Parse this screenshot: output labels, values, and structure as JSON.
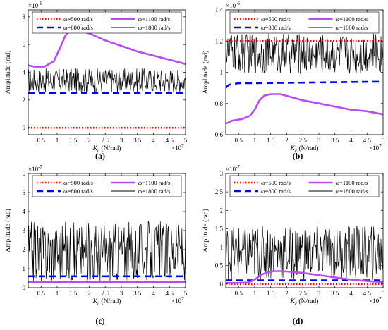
{
  "chart_data": [
    {
      "type": "line",
      "panel_label": "(a)",
      "ylabel": "Amplitude (rad)",
      "xlabel_main": "K",
      "xlabel_sub": "c",
      "xlabel_unit": " (N/rad)",
      "x_exponent_base": "×10",
      "x_exponent_power": "7",
      "y_exponent_base": "×10",
      "y_exponent_power": "-6",
      "xlim": [
        0.1,
        5
      ],
      "ylim": [
        -0.5,
        8.5
      ],
      "xticks": [
        "0.5",
        "1",
        "1.5",
        "2",
        "2.5",
        "3",
        "3.5",
        "4",
        "4.5",
        "5"
      ],
      "xtick_values": [
        0.5,
        1,
        1.5,
        2,
        2.5,
        3,
        3.5,
        4,
        4.5,
        5
      ],
      "yticks": [
        "0",
        "2",
        "4",
        "6",
        "8"
      ],
      "ytick_values": [
        0,
        2,
        4,
        6,
        8
      ],
      "legend": [
        "ω=500 rad/s",
        "ω=1100 rad/s",
        "ω=800 rad/s",
        "ω=1800 rad/s"
      ],
      "series": [
        {
          "name": "ω=500 rad/s",
          "style": "dotted",
          "color": "#ff0000",
          "x": [
            0.1,
            5
          ],
          "y": [
            0,
            0
          ]
        },
        {
          "name": "ω=800 rad/s",
          "style": "dashed",
          "color": "#0000ff",
          "x": [
            0.1,
            5
          ],
          "y": [
            2.5,
            2.5
          ]
        },
        {
          "name": "ω=1100 rad/s",
          "style": "solid",
          "color": "#b84cf0",
          "x": [
            0.1,
            0.3,
            0.6,
            0.9,
            1.1,
            1.25,
            1.4,
            1.6,
            2,
            2.5,
            3,
            3.5,
            4,
            4.5,
            5
          ],
          "y": [
            4.5,
            4.4,
            4.4,
            4.8,
            5.8,
            6.6,
            7.1,
            7.1,
            6.8,
            6.3,
            5.9,
            5.5,
            5.2,
            4.9,
            4.6
          ]
        },
        {
          "name": "ω=1800 rad/s",
          "style": "noise",
          "color": "#000000",
          "base": 3.4,
          "amplitude": 0.9
        }
      ]
    },
    {
      "type": "line",
      "panel_label": "(b)",
      "ylabel": "Amplitude (rad)",
      "xlabel_main": "K",
      "xlabel_sub": "c",
      "xlabel_unit": " (N/rad)",
      "x_exponent_base": "×10",
      "x_exponent_power": "7",
      "y_exponent_base": "×10",
      "y_exponent_power": "-6",
      "xlim": [
        0.1,
        5
      ],
      "ylim": [
        0.6,
        1.4
      ],
      "xticks": [
        "0.5",
        "1",
        "1.5",
        "2",
        "2.5",
        "3",
        "3.5",
        "4",
        "4.5",
        "5"
      ],
      "xtick_values": [
        0.5,
        1,
        1.5,
        2,
        2.5,
        3,
        3.5,
        4,
        4.5,
        5
      ],
      "yticks": [
        "0.6",
        "0.8",
        "1",
        "1.2",
        "1.4"
      ],
      "ytick_values": [
        0.6,
        0.8,
        1.0,
        1.2,
        1.4
      ],
      "legend": [
        "ω=500 rad/s",
        "ω=1100 rad/s",
        "ω=800 rad/s",
        "ω=1800 rad/s"
      ],
      "series": [
        {
          "name": "ω=500 rad/s",
          "style": "dotted",
          "color": "#ff0000",
          "x": [
            0.1,
            5
          ],
          "y": [
            1.2,
            1.2
          ]
        },
        {
          "name": "ω=800 rad/s",
          "style": "dashed",
          "color": "#0000ff",
          "x": [
            0.1,
            0.2,
            0.5,
            1,
            5
          ],
          "y": [
            0.9,
            0.92,
            0.93,
            0.93,
            0.94
          ]
        },
        {
          "name": "ω=1100 rad/s",
          "style": "solid",
          "color": "#b84cf0",
          "x": [
            0.1,
            0.3,
            0.6,
            0.85,
            1,
            1.15,
            1.3,
            1.5,
            1.8,
            2.5,
            3,
            3.5,
            4,
            4.5,
            5
          ],
          "y": [
            0.67,
            0.69,
            0.7,
            0.72,
            0.76,
            0.82,
            0.85,
            0.86,
            0.86,
            0.82,
            0.8,
            0.78,
            0.76,
            0.75,
            0.73
          ]
        },
        {
          "name": "ω=1800 rad/s",
          "style": "noise",
          "color": "#000000",
          "base": 1.12,
          "amplitude": 0.13
        }
      ]
    },
    {
      "type": "line",
      "panel_label": "(c)",
      "ylabel": "Amplitude (rad)",
      "xlabel_main": "K",
      "xlabel_sub": "c",
      "xlabel_unit": " (N/rad)",
      "x_exponent_base": "×10",
      "x_exponent_power": "7",
      "y_exponent_base": "×10",
      "y_exponent_power": "-7",
      "xlim": [
        0.1,
        5
      ],
      "ylim": [
        0,
        6
      ],
      "xticks": [
        "0.5",
        "1",
        "1.5",
        "2",
        "2.5",
        "3",
        "3.5",
        "4",
        "4.5",
        "5"
      ],
      "xtick_values": [
        0.5,
        1,
        1.5,
        2,
        2.5,
        3,
        3.5,
        4,
        4.5,
        5
      ],
      "yticks": [
        "0",
        "1",
        "2",
        "3",
        "4",
        "5",
        "6"
      ],
      "ytick_values": [
        0,
        1,
        2,
        3,
        4,
        5,
        6
      ],
      "legend": [
        "ω=500 rad/s",
        "ω=1100 rad/s",
        "ω=800 rad/s",
        "ω=1800 rad/s"
      ],
      "series": [
        {
          "name": "ω=500 rad/s",
          "style": "dotted",
          "color": "#ff0000",
          "x": [
            0.1,
            5
          ],
          "y": [
            0.3,
            0.3
          ]
        },
        {
          "name": "ω=800 rad/s",
          "style": "dashed",
          "color": "#0000ff",
          "x": [
            0.1,
            5
          ],
          "y": [
            0.6,
            0.6
          ]
        },
        {
          "name": "ω=1100 rad/s",
          "style": "solid",
          "color": "#b84cf0",
          "x": [
            0.1,
            5
          ],
          "y": [
            0.3,
            0.3
          ]
        },
        {
          "name": "ω=1800 rad/s",
          "style": "noise",
          "color": "#000000",
          "base": 1.9,
          "amplitude": 1.6
        }
      ]
    },
    {
      "type": "line",
      "panel_label": "(d)",
      "ylabel": "Amplitude (rad)",
      "xlabel_main": "K",
      "xlabel_sub": "c",
      "xlabel_unit": " (N/rad)",
      "x_exponent_base": "×10",
      "x_exponent_power": "7",
      "y_exponent_base": "×10",
      "y_exponent_power": "-7",
      "xlim": [
        0.1,
        5
      ],
      "ylim": [
        -0.1,
        3
      ],
      "xticks": [
        "0.5",
        "1",
        "1.5",
        "2",
        "2.5",
        "3",
        "3.5",
        "4",
        "4.5",
        "5"
      ],
      "xtick_values": [
        0.5,
        1,
        1.5,
        2,
        2.5,
        3,
        3.5,
        4,
        4.5,
        5
      ],
      "yticks": [
        "0",
        "0.5",
        "1",
        "1.5",
        "2",
        "2.5",
        "3"
      ],
      "ytick_values": [
        0,
        0.5,
        1,
        1.5,
        2,
        2.5,
        3
      ],
      "legend": [
        "ω=500 rad/s",
        "ω=1100 rad/s",
        "ω=800 rad/s",
        "ω=1800 rad/s"
      ],
      "series": [
        {
          "name": "ω=500 rad/s",
          "style": "dotted",
          "color": "#ff0000",
          "x": [
            0.1,
            5
          ],
          "y": [
            0,
            0
          ]
        },
        {
          "name": "ω=800 rad/s",
          "style": "dashed",
          "color": "#0000ff",
          "x": [
            0.1,
            5
          ],
          "y": [
            0.1,
            0.1
          ]
        },
        {
          "name": "ω=1100 rad/s",
          "style": "solid",
          "color": "#b84cf0",
          "x": [
            0.1,
            0.5,
            0.8,
            1,
            1.2,
            1.4,
            1.6,
            1.8,
            2,
            2.5,
            3,
            3.5,
            4,
            4.5,
            5
          ],
          "y": [
            0.03,
            0.03,
            0.04,
            0.12,
            0.25,
            0.32,
            0.35,
            0.35,
            0.34,
            0.3,
            0.24,
            0.18,
            0.12,
            0.08,
            0.05
          ]
        },
        {
          "name": "ω=1800 rad/s",
          "style": "noise",
          "color": "#000000",
          "base": 0.85,
          "amplitude": 0.75
        }
      ]
    }
  ]
}
